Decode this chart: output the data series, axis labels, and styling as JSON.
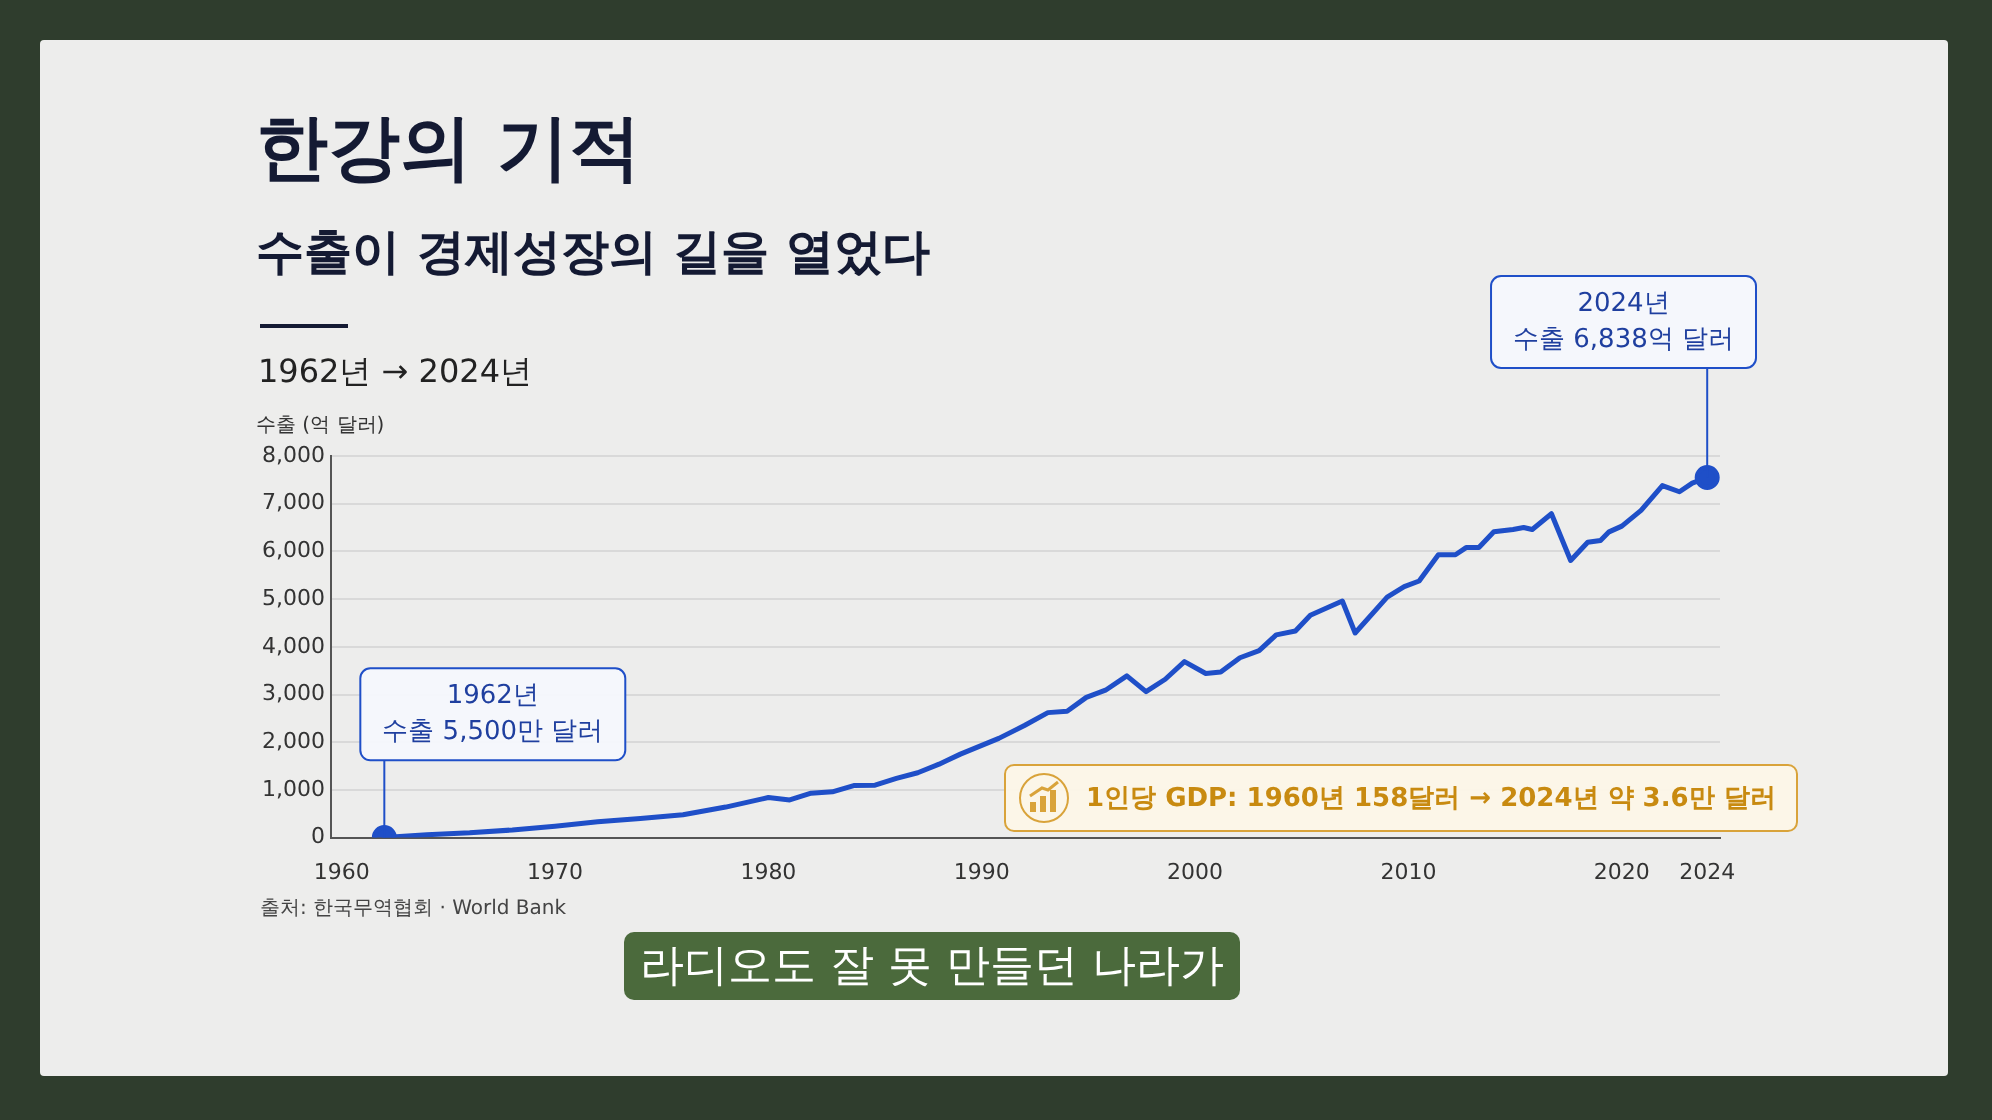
{
  "chart_data": {
    "type": "line",
    "title": "한강의 기적",
    "subtitle": "수출이 경제성장의 길을 열었다",
    "ylabel": "수출 (억 달러)",
    "annotations": [
      "1962년 → 2024년",
      {
        "text": "1962년\n수출 5,500만 달러",
        "x": 1962,
        "y": 0.55
      },
      {
        "text": "2024년\n수출 6,838억 달러",
        "x": 2024,
        "y": 7550
      },
      "1인당 GDP: 1960년 158달러 → 2024년 약 3.6만 달러",
      "출처: 한국무역협회 · World Bank",
      "라디오도 잘 못 만들던 나라가"
    ],
    "x": [
      1962,
      1964,
      1966,
      1968,
      1970,
      1972,
      1974,
      1976,
      1978,
      1980,
      1981,
      1982,
      1983,
      1984,
      1985,
      1986,
      1987,
      1988,
      1989,
      1990.8,
      1992,
      1993.1,
      1994,
      1994.9,
      1995.8,
      1996.8,
      1997.7,
      1998.6,
      1999.5,
      2000.5,
      2001.2,
      2002.1,
      2003,
      2003.8,
      2004.7,
      2005.4,
      2006.9,
      2007.5,
      2009,
      2009.8,
      2010.5,
      2011.4,
      2012.2,
      2012.7,
      2013.3,
      2014,
      2014.9,
      2015.4,
      2015.8,
      2016.7,
      2017.6,
      2018.4,
      2019,
      2019.4,
      2020,
      2020.9,
      2021.9,
      2022.7,
      2023.3,
      2024
    ],
    "series": [
      {
        "color": "#1f4fc8",
        "values": [
          0.55,
          60,
          100,
          160,
          240,
          330,
          400,
          480,
          640,
          840,
          790,
          930,
          960,
          1090,
          1100,
          1240,
          1360,
          1540,
          1750,
          2080,
          2350,
          2620,
          2650,
          2940,
          3090,
          3390,
          3060,
          3320,
          3690,
          3440,
          3470,
          3770,
          3920,
          4250,
          4330,
          4660,
          4960,
          4290,
          5040,
          5260,
          5380,
          5930,
          5930,
          6080,
          6080,
          6410,
          6460,
          6500,
          6460,
          6790,
          5810,
          6190,
          6230,
          6410,
          6530,
          6860,
          7380,
          7250,
          7430,
          7550
        ]
      }
    ],
    "xlim": [
      1959.5,
      2024.6
    ],
    "xticks": [
      1960,
      1970,
      1980,
      1990,
      2000,
      2010,
      2020,
      2024
    ],
    "ylim": [
      0,
      8000
    ],
    "yticks": [
      0,
      {
        "value": 1000,
        "label": "1,000"
      },
      {
        "value": 2000,
        "label": "2,000"
      },
      {
        "value": 3000,
        "label": "3,000"
      },
      {
        "value": 4000,
        "label": "4,000"
      },
      {
        "value": 5000,
        "label": "5,000"
      },
      {
        "value": 6000,
        "label": "6,000"
      },
      {
        "value": 7000,
        "label": "7,000"
      },
      {
        "value": 8000,
        "label": "8,000"
      }
    ],
    "grid": "y",
    "legend": false,
    "marker": "none",
    "line_style": "solid"
  }
}
